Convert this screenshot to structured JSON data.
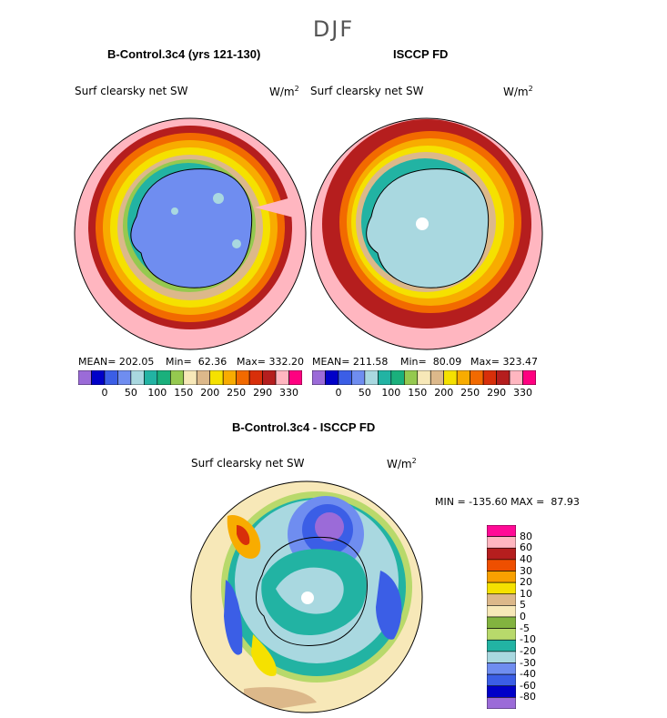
{
  "figure": {
    "season": "DJF"
  },
  "chart_data": [
    {
      "type": "heatmap",
      "title": "B-Control.3c4 (yrs 121-130)",
      "variable": "Surf clearsky net SW",
      "units": "W/m",
      "units_sup": "2",
      "projection": "south polar stereographic",
      "stats": {
        "mean": "MEAN= 202.05",
        "min": "Min=  62.36",
        "max": "Max= 332.20"
      },
      "colorbar": {
        "levels": [
          "0",
          "50",
          "100",
          "150",
          "200",
          "250",
          "290",
          "330"
        ],
        "colors": [
          "#9b6bd8",
          "#0000c8",
          "#3b5ee6",
          "#6f8df0",
          "#a9d8e0",
          "#22b3a3",
          "#1ab07c",
          "#95c94f",
          "#f7e8b8",
          "#dcb88a",
          "#f5e100",
          "#f8ac00",
          "#f26a00",
          "#d82f0a",
          "#b51e1e",
          "#ffb6c0",
          "#ff0080"
        ]
      }
    },
    {
      "type": "heatmap",
      "title": "ISCCP FD",
      "variable": "Surf clearsky net SW",
      "units": "W/m",
      "units_sup": "2",
      "projection": "south polar stereographic",
      "stats": {
        "mean": "MEAN= 211.58",
        "min": "Min=  80.09",
        "max": "Max= 323.47"
      },
      "colorbar": {
        "levels": [
          "0",
          "50",
          "100",
          "150",
          "200",
          "250",
          "290",
          "330"
        ],
        "colors": [
          "#9b6bd8",
          "#0000c8",
          "#3b5ee6",
          "#6f8df0",
          "#a9d8e0",
          "#22b3a3",
          "#1ab07c",
          "#95c94f",
          "#f7e8b8",
          "#dcb88a",
          "#f5e100",
          "#f8ac00",
          "#f26a00",
          "#d82f0a",
          "#b51e1e",
          "#ffb6c0",
          "#ff0080"
        ]
      }
    },
    {
      "type": "heatmap",
      "title": "B-Control.3c4 - ISCCP FD",
      "variable": "Surf clearsky net SW",
      "units": "W/m",
      "units_sup": "2",
      "projection": "south polar stereographic",
      "stats": {
        "minmax": "MIN = -135.60 MAX =  87.93"
      },
      "colorbar": {
        "levels": [
          "80",
          "60",
          "40",
          "30",
          "20",
          "10",
          "5",
          "0",
          "-5",
          "-10",
          "-20",
          "-30",
          "-40",
          "-60",
          "-80"
        ],
        "colors": [
          "#ff0a96",
          "#ffb6c0",
          "#b51e1e",
          "#ee4f00",
          "#f8a000",
          "#f5e100",
          "#dcb88a",
          "#f7e8b8",
          "#82b33f",
          "#b8d96b",
          "#22b3a3",
          "#a9d8e0",
          "#6f8df0",
          "#3b5ee6",
          "#0000c8",
          "#9b6bd8"
        ]
      }
    }
  ]
}
